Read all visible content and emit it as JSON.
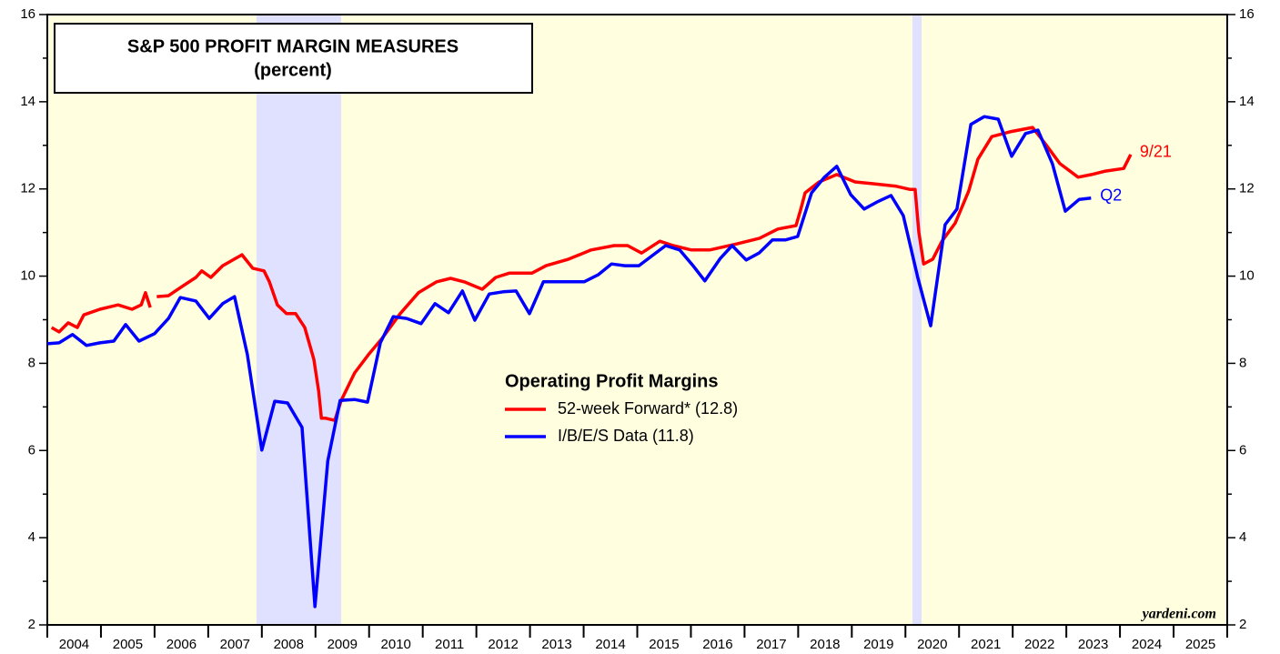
{
  "chart_data": {
    "type": "line",
    "title": "S&P 500 PROFIT MARGIN MEASURES",
    "subtitle": "(percent)",
    "legend_title": "Operating Profit Margins",
    "source": "yardeni.com",
    "background": "#ffffe0",
    "shade_color": "#e0e0ff",
    "shaded_periods": [
      [
        2007.9,
        2009.48
      ],
      [
        2020.13,
        2020.3
      ]
    ],
    "xlim": [
      2004,
      2026
    ],
    "xticks": [
      2004,
      2005,
      2006,
      2007,
      2008,
      2009,
      2010,
      2011,
      2012,
      2013,
      2014,
      2015,
      2016,
      2017,
      2018,
      2019,
      2020,
      2021,
      2022,
      2023,
      2024,
      2025,
      2026
    ],
    "xtick_labels": [
      {
        "value": 2004.5,
        "label": "2004"
      },
      {
        "value": 2005.5,
        "label": "2005"
      },
      {
        "value": 2006.5,
        "label": "2006"
      },
      {
        "value": 2007.5,
        "label": "2007"
      },
      {
        "value": 2008.5,
        "label": "2008"
      },
      {
        "value": 2009.5,
        "label": "2009"
      },
      {
        "value": 2010.5,
        "label": "2010"
      },
      {
        "value": 2011.5,
        "label": "2011"
      },
      {
        "value": 2012.5,
        "label": "2012"
      },
      {
        "value": 2013.5,
        "label": "2013"
      },
      {
        "value": 2014.5,
        "label": "2014"
      },
      {
        "value": 2015.5,
        "label": "2015"
      },
      {
        "value": 2016.5,
        "label": "2016"
      },
      {
        "value": 2017.5,
        "label": "2017"
      },
      {
        "value": 2018.5,
        "label": "2018"
      },
      {
        "value": 2019.5,
        "label": "2019"
      },
      {
        "value": 2020.5,
        "label": "2020"
      },
      {
        "value": 2021.5,
        "label": "2021"
      },
      {
        "value": 2022.5,
        "label": "2022"
      },
      {
        "value": 2023.5,
        "label": "2023"
      },
      {
        "value": 2024.5,
        "label": "2024"
      },
      {
        "value": 2025.5,
        "label": "2025"
      }
    ],
    "ylim": [
      2,
      16
    ],
    "yticks": [
      2,
      4,
      6,
      8,
      10,
      12,
      14,
      16
    ],
    "yminor": [
      3,
      5,
      7,
      9,
      11,
      13,
      15
    ],
    "series": [
      {
        "name": "52-week Forward* (12.8)",
        "color": "#ff0000",
        "end_label": "9/21",
        "x": [
          2004.08,
          2004.22,
          2004.39,
          2004.56,
          2004.68,
          2004.98,
          2005.32,
          2005.58,
          2005.75,
          2005.83,
          2005.92,
          null,
          2006.04,
          2006.26,
          2006.51,
          2006.77,
          2006.88,
          2007.05,
          2007.27,
          2007.63,
          2007.83,
          2008.04,
          2008.14,
          2008.29,
          2008.46,
          2008.63,
          2008.8,
          2008.97,
          2009.06,
          2009.11,
          2009.19,
          2009.36,
          2009.48,
          2009.73,
          2009.99,
          2010.24,
          2010.58,
          2010.92,
          2011.26,
          2011.52,
          2011.77,
          2012.11,
          2012.36,
          2012.62,
          2013.04,
          2013.3,
          2013.72,
          2014.14,
          2014.57,
          2014.82,
          2015.08,
          2015.42,
          2015.67,
          2016.01,
          2016.35,
          2016.86,
          2017.28,
          2017.62,
          2017.96,
          2018.05,
          2018.13,
          2018.39,
          2018.72,
          2019.06,
          2019.4,
          2019.83,
          2020.08,
          2020.18,
          2020.25,
          2020.34,
          2020.51,
          2020.68,
          2020.93,
          2021.18,
          2021.35,
          2021.61,
          2021.95,
          2022.37,
          2022.63,
          2022.88,
          2023.22,
          2023.47,
          2023.73,
          2024.07,
          2024.2
        ],
        "values": [
          8.82,
          8.72,
          8.93,
          8.82,
          9.11,
          9.24,
          9.34,
          9.24,
          9.34,
          9.62,
          9.28,
          null,
          9.53,
          9.55,
          9.76,
          9.97,
          10.12,
          9.97,
          10.24,
          10.49,
          10.18,
          10.12,
          9.87,
          9.34,
          9.14,
          9.14,
          8.82,
          8.09,
          7.36,
          6.74,
          6.74,
          6.69,
          7.15,
          7.78,
          8.2,
          8.57,
          9.14,
          9.62,
          9.87,
          9.95,
          9.87,
          9.7,
          9.97,
          10.07,
          10.07,
          10.24,
          10.39,
          10.6,
          10.7,
          10.7,
          10.53,
          10.8,
          10.7,
          10.6,
          10.6,
          10.74,
          10.87,
          11.08,
          11.16,
          11.54,
          11.91,
          12.16,
          12.33,
          12.16,
          12.12,
          12.06,
          11.99,
          11.99,
          11.01,
          10.28,
          10.39,
          10.8,
          11.22,
          11.95,
          12.68,
          13.2,
          13.31,
          13.41,
          13.0,
          12.58,
          12.27,
          12.33,
          12.41,
          12.47,
          12.79
        ]
      },
      {
        "name": "I/B/E/S Data (11.8)",
        "color": "#0000ff",
        "end_label": "Q2",
        "x": [
          2004.0,
          2004.22,
          2004.47,
          2004.73,
          2004.98,
          2005.24,
          2005.46,
          2005.71,
          2006.0,
          2006.26,
          2006.48,
          2006.77,
          2007.02,
          2007.27,
          2007.49,
          2007.73,
          2008.0,
          2008.24,
          2008.48,
          2008.75,
          2008.99,
          2009.23,
          2009.46,
          2009.73,
          2009.97,
          2010.21,
          2010.45,
          2010.7,
          2010.97,
          2011.23,
          2011.48,
          2011.74,
          2011.97,
          2012.24,
          2012.5,
          2012.74,
          2012.99,
          2013.25,
          2013.5,
          2013.75,
          2014.01,
          2014.27,
          2014.52,
          2014.77,
          2015.03,
          2015.28,
          2015.53,
          2015.79,
          2016.04,
          2016.26,
          2016.55,
          2016.77,
          2017.03,
          2017.27,
          2017.52,
          2017.76,
          2017.99,
          2018.25,
          2018.49,
          2018.72,
          2018.98,
          2019.23,
          2019.47,
          2019.73,
          2019.96,
          2020.23,
          2020.47,
          2020.74,
          2020.96,
          2021.22,
          2021.47,
          2021.73,
          2021.98,
          2022.24,
          2022.47,
          2022.74,
          2022.98,
          2023.24,
          2023.46
        ],
        "values": [
          8.45,
          8.47,
          8.66,
          8.41,
          8.47,
          8.51,
          8.89,
          8.51,
          8.68,
          9.03,
          9.51,
          9.43,
          9.03,
          9.37,
          9.53,
          8.2,
          6.01,
          7.13,
          7.09,
          6.53,
          2.42,
          5.76,
          7.15,
          7.17,
          7.11,
          8.47,
          9.07,
          9.03,
          8.91,
          9.37,
          9.16,
          9.66,
          8.99,
          9.59,
          9.64,
          9.66,
          9.14,
          9.87,
          9.87,
          9.87,
          9.87,
          10.03,
          10.28,
          10.24,
          10.24,
          10.47,
          10.7,
          10.6,
          10.24,
          9.89,
          10.41,
          10.7,
          10.37,
          10.53,
          10.83,
          10.83,
          10.91,
          11.91,
          12.27,
          12.52,
          11.87,
          11.54,
          11.7,
          11.85,
          11.39,
          9.97,
          8.86,
          11.18,
          11.54,
          13.48,
          13.66,
          13.6,
          12.75,
          13.27,
          13.35,
          12.58,
          11.49,
          11.76,
          11.79
        ]
      }
    ]
  }
}
